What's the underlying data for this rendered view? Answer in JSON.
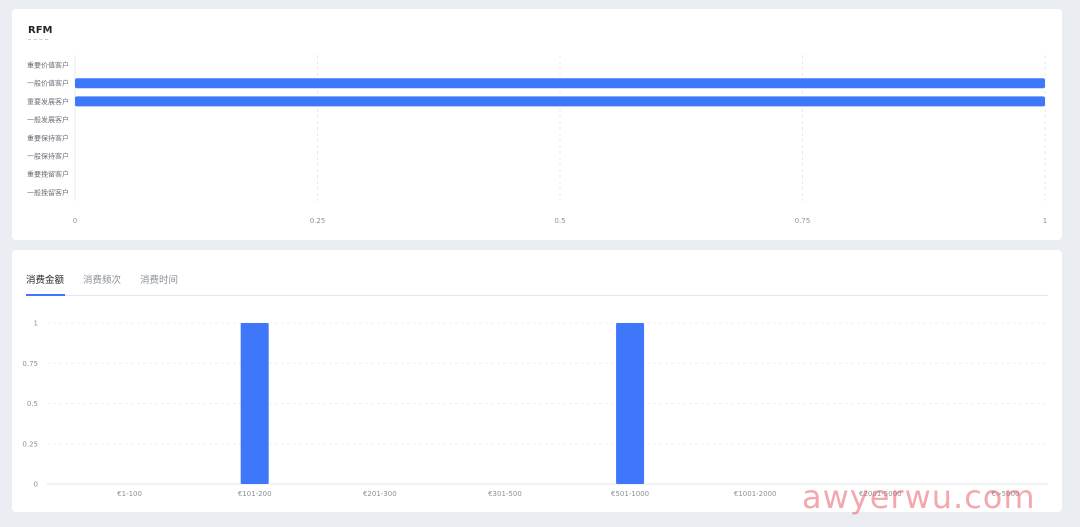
{
  "rfm": {
    "title": "RFM",
    "chart_data": {
      "type": "bar",
      "orientation": "horizontal",
      "title": "RFM",
      "categories": [
        "重要价值客户",
        "一般价值客户",
        "重要发展客户",
        "一般发展客户",
        "重要保持客户",
        "一般保持客户",
        "重要挽留客户",
        "一般挽留客户"
      ],
      "values": [
        0,
        1,
        1,
        0,
        0,
        0,
        0,
        0
      ],
      "xlim": [
        0,
        1
      ],
      "xticks": [
        "0",
        "0.25",
        "0.5",
        "0.75",
        "1"
      ],
      "grid": true,
      "bar_color": "#3e77f9"
    }
  },
  "tabs": [
    {
      "label": "消费金额"
    },
    {
      "label": "消费频次"
    },
    {
      "label": "消费时间"
    }
  ],
  "amount": {
    "chart_data": {
      "type": "bar",
      "categories": [
        "€1-100",
        "€101-200",
        "€201-300",
        "€301-500",
        "€501-1000",
        "€1001-2000",
        "€2001-5000",
        "€>5000"
      ],
      "values": [
        0,
        1,
        0,
        0,
        1,
        0,
        0,
        0
      ],
      "ylim": [
        0,
        1
      ],
      "yticks": [
        "0",
        "0.25",
        "0.5",
        "0.75",
        "1"
      ],
      "grid": true,
      "bar_color": "#3e77f9"
    }
  },
  "watermark": "awyerwu.com"
}
